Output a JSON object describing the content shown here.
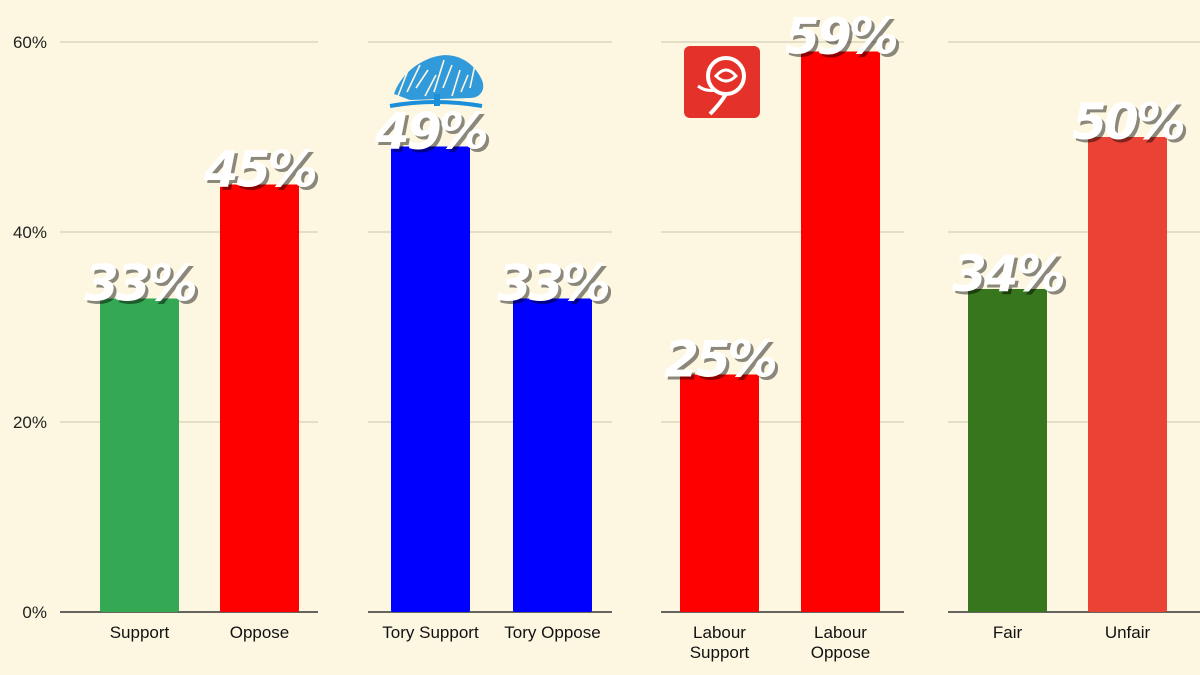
{
  "chart_data": {
    "type": "bar",
    "y_axis": {
      "ylim": [
        0,
        60
      ],
      "ticks": [
        0,
        20,
        40,
        60
      ],
      "tick_labels": [
        "0%",
        "20%",
        "40%",
        "60%"
      ]
    },
    "grid": true,
    "panels": [
      {
        "categories": [
          "Support",
          "Oppose"
        ],
        "values": [
          33,
          45
        ],
        "value_labels": [
          "33%",
          "45%"
        ],
        "colors": [
          "#34a853",
          "#ff0000"
        ],
        "logo": null
      },
      {
        "categories": [
          "Tory Support",
          "Tory Oppose"
        ],
        "values": [
          49,
          33
        ],
        "value_labels": [
          "49%",
          "33%"
        ],
        "colors": [
          "#0000ff",
          "#0000ff"
        ],
        "logo": "conservative-tree-logo"
      },
      {
        "categories": [
          [
            "Labour",
            "Support"
          ],
          [
            "Labour",
            "Oppose"
          ]
        ],
        "values": [
          25,
          59
        ],
        "value_labels": [
          "25%",
          "59%"
        ],
        "colors": [
          "#ff0000",
          "#ff0000"
        ],
        "logo": "labour-rose-logo"
      },
      {
        "categories": [
          "Fair",
          "Unfair"
        ],
        "values": [
          34,
          50
        ],
        "value_labels": [
          "34%",
          "50%"
        ],
        "colors": [
          "#38761d",
          "#ea4335"
        ],
        "logo": null
      }
    ]
  },
  "theme": {
    "background": "#fdf7e1",
    "gridline": "#c9c4ac",
    "axis": "#333333",
    "logo_blue": "#1b8fd9",
    "logo_red": "#e4322b"
  }
}
